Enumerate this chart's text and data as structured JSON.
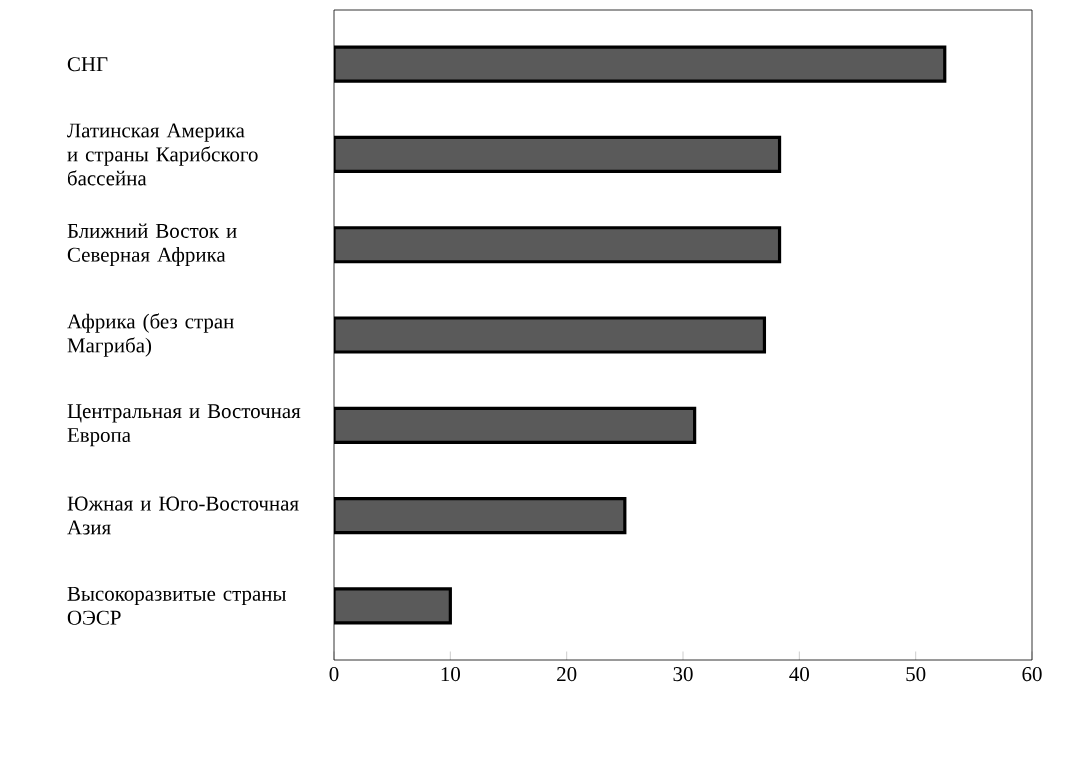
{
  "chart_data": {
    "type": "bar",
    "orientation": "horizontal",
    "categories": [
      "СНГ",
      "Латинская Америка и страны Карибского бассейна",
      "Ближний Восток и Северная Африка",
      "Африка (без стран Магриба)",
      "Центральная и Восточная Европа",
      "Южная и Юго-Восточная Азия",
      "Высокоразвитые страны ОЭСР"
    ],
    "values": [
      52.5,
      38.3,
      38.3,
      37,
      31,
      25,
      10
    ],
    "color": "#5a5a5a",
    "xlim": [
      0,
      60
    ],
    "xticks": [
      0,
      10,
      20,
      30,
      40,
      50,
      60
    ]
  }
}
